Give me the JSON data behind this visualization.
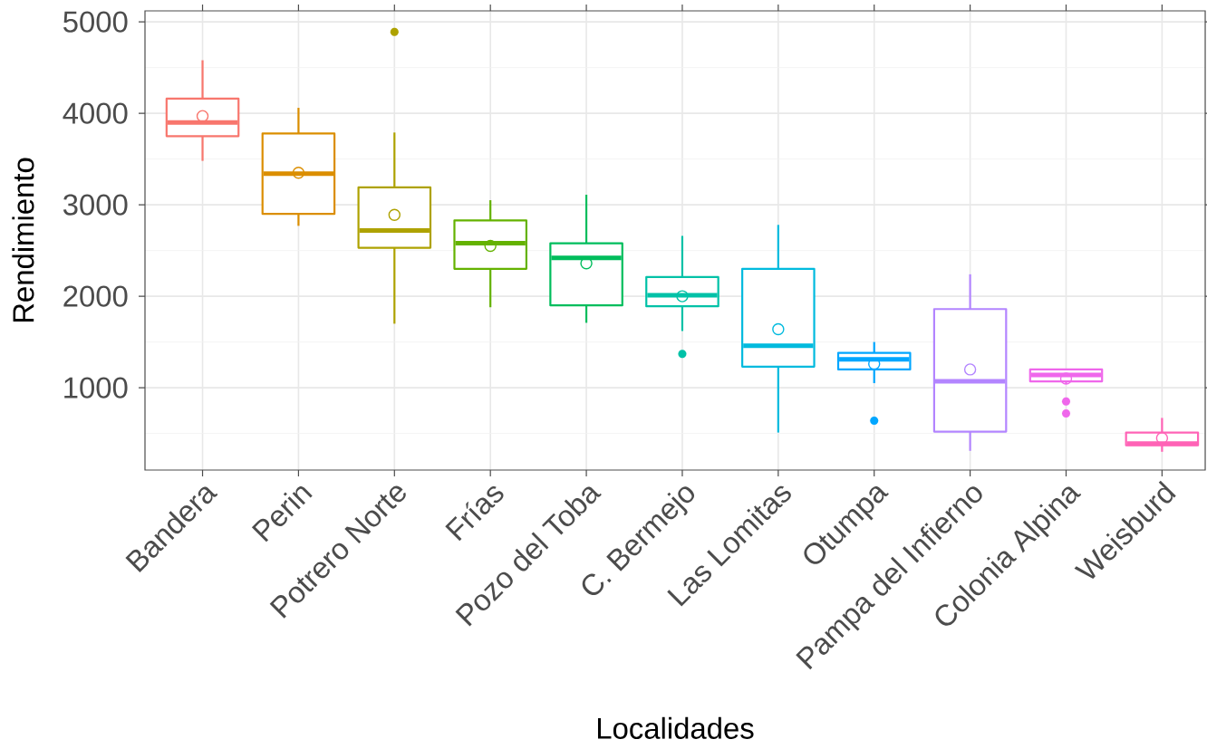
{
  "chart_data": {
    "type": "box",
    "xlabel": "Localidades",
    "ylabel": "Rendimiento",
    "categories": [
      "Bandera",
      "Perin",
      "Potrero Norte",
      "Frías",
      "Pozo del Toba",
      "C. Bermejo",
      "Las Lomitas",
      "Otumpa",
      "Pampa del Infierno",
      "Colonia Alpina",
      "Weisburd"
    ],
    "colors": [
      "#F8766D",
      "#DB8E00",
      "#AEA200",
      "#64B200",
      "#00BD5C",
      "#00C1A7",
      "#00BADE",
      "#00A6FF",
      "#B385FF",
      "#EF67EB",
      "#FF63B6"
    ],
    "boxes": [
      {
        "low": 3480,
        "q1": 3750,
        "median": 3900,
        "q3": 4160,
        "high": 4580,
        "mean": 3970
      },
      {
        "low": 2770,
        "q1": 2900,
        "median": 3340,
        "q3": 3780,
        "high": 4060,
        "mean": 3350
      },
      {
        "low": 1700,
        "q1": 2530,
        "median": 2720,
        "q3": 3190,
        "high": 3790,
        "mean": 2890,
        "outliers": [
          4890
        ]
      },
      {
        "low": 1880,
        "q1": 2300,
        "median": 2580,
        "q3": 2830,
        "high": 3050,
        "mean": 2550
      },
      {
        "low": 1710,
        "q1": 1900,
        "median": 2420,
        "q3": 2580,
        "high": 3110,
        "mean": 2360
      },
      {
        "low": 1620,
        "q1": 1890,
        "median": 2010,
        "q3": 2210,
        "high": 2660,
        "mean": 2000,
        "outliers": [
          1370
        ]
      },
      {
        "low": 510,
        "q1": 1230,
        "median": 1460,
        "q3": 2300,
        "high": 2780,
        "mean": 1640
      },
      {
        "low": 1050,
        "q1": 1200,
        "median": 1310,
        "q3": 1380,
        "high": 1500,
        "mean": 1260,
        "outliers": [
          640
        ]
      },
      {
        "low": 310,
        "q1": 520,
        "median": 1070,
        "q3": 1860,
        "high": 2240,
        "mean": 1200
      },
      {
        "low": 1040,
        "q1": 1070,
        "median": 1140,
        "q3": 1200,
        "high": 1200,
        "mean": 1100,
        "outliers": [
          850,
          720
        ]
      },
      {
        "low": 300,
        "q1": 370,
        "median": 390,
        "q3": 510,
        "high": 670,
        "mean": 450
      }
    ],
    "ylim": [
      100,
      5120
    ],
    "yticks": [
      1000,
      2000,
      3000,
      4000,
      5000
    ],
    "grid": true
  }
}
